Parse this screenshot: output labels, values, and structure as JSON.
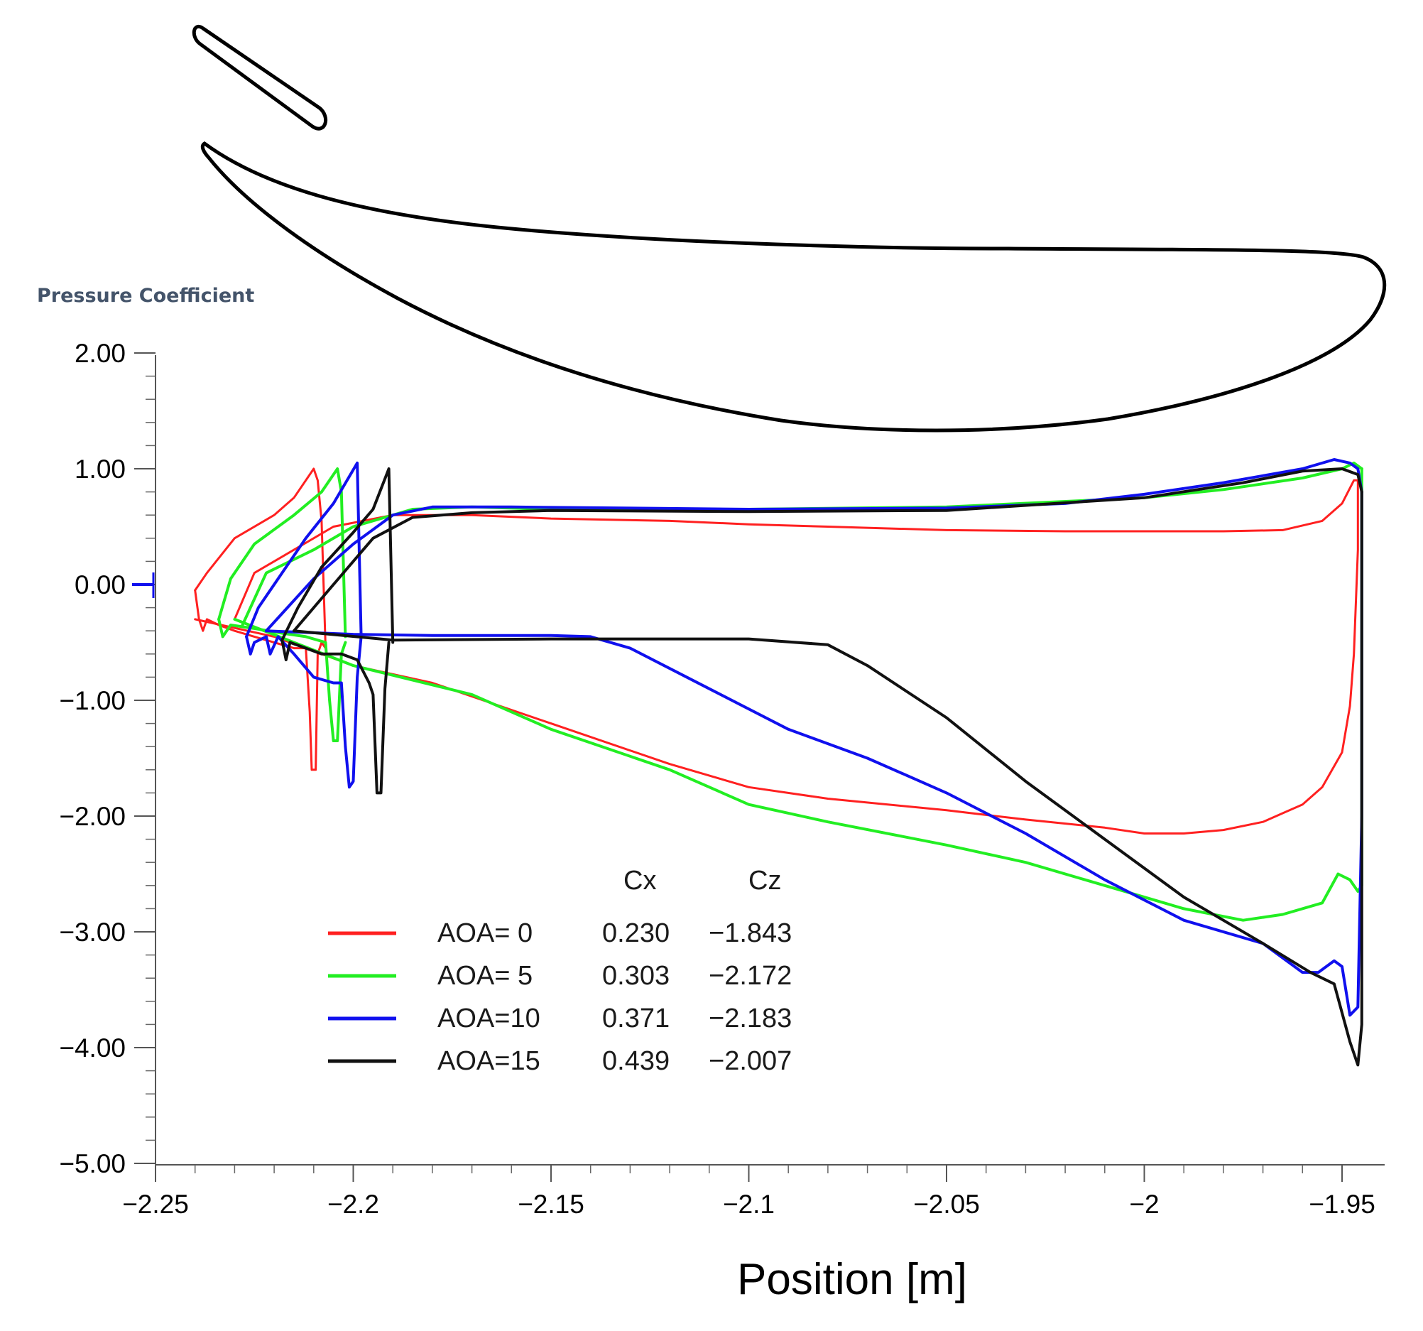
{
  "chart_data": {
    "type": "line",
    "title": "",
    "ylabel": "Pressure Coefficient",
    "xlabel": "Position [m]",
    "xlim": [
      -2.25,
      -1.945
    ],
    "ylim": [
      -5.0,
      2.0
    ],
    "x_ticks": [
      -2.25,
      -2.2,
      -2.15,
      -2.1,
      -2.05,
      -2.0,
      -1.95
    ],
    "x_tick_labels": [
      "−2.25",
      "−2.2",
      "−2.15",
      "−2.1",
      "−2.05",
      "−2",
      "−1.95"
    ],
    "y_ticks": [
      2.0,
      1.0,
      0.0,
      -1.0,
      -2.0,
      -3.0,
      -4.0,
      -5.0
    ],
    "y_tick_labels": [
      "2.00",
      "1.00",
      "0.00",
      "−1.00",
      "−2.00",
      "−3.00",
      "−4.00",
      "−5.00"
    ],
    "legend": {
      "placement": "lower-left",
      "header": {
        "cx": "Cx",
        "cz": "Cz"
      },
      "entries": [
        {
          "label": "AOA= 0",
          "cx": "0.230",
          "cz": "−1.843",
          "color": "#ff2020"
        },
        {
          "label": "AOA= 5",
          "cx": "0.303",
          "cz": "−2.172",
          "color": "#22ee22"
        },
        {
          "label": "AOA=10",
          "cx": "0.371",
          "cz": "−2.183",
          "color": "#1010ee"
        },
        {
          "label": "AOA=15",
          "cx": "0.439",
          "cz": "−2.007",
          "color": "#111111"
        }
      ]
    },
    "series": [
      {
        "name": "AOA= 0",
        "color": "#ff2020",
        "slat_upper": [
          [
            -2.24,
            -0.05
          ],
          [
            -2.239,
            -0.3
          ],
          [
            -2.238,
            -0.4
          ],
          [
            -2.237,
            -0.3
          ],
          [
            -2.234,
            -0.35
          ],
          [
            -2.23,
            -0.4
          ],
          [
            -2.225,
            -0.45
          ],
          [
            -2.22,
            -0.5
          ],
          [
            -2.215,
            -0.55
          ],
          [
            -2.212,
            -0.55
          ],
          [
            -2.211,
            -1.1
          ],
          [
            -2.2105,
            -1.6
          ],
          [
            -2.2095,
            -1.6
          ],
          [
            -2.209,
            -0.6
          ],
          [
            -2.208,
            -0.5
          ],
          [
            -2.207,
            -0.55
          ]
        ],
        "slat_lower": [
          [
            -2.24,
            -0.05
          ],
          [
            -2.237,
            0.1
          ],
          [
            -2.23,
            0.4
          ],
          [
            -2.22,
            0.6
          ],
          [
            -2.215,
            0.75
          ],
          [
            -2.21,
            1.0
          ],
          [
            -2.209,
            0.9
          ],
          [
            -2.208,
            0.55
          ],
          [
            -2.207,
            -0.55
          ]
        ],
        "main_upper": [
          [
            -2.24,
            -0.3
          ],
          [
            -2.22,
            -0.45
          ],
          [
            -2.2,
            -0.7
          ],
          [
            -2.18,
            -0.85
          ],
          [
            -2.15,
            -1.2
          ],
          [
            -2.12,
            -1.55
          ],
          [
            -2.1,
            -1.75
          ],
          [
            -2.08,
            -1.85
          ],
          [
            -2.05,
            -1.95
          ],
          [
            -2.03,
            -2.03
          ],
          [
            -2.01,
            -2.1
          ],
          [
            -2.0,
            -2.15
          ],
          [
            -1.99,
            -2.15
          ],
          [
            -1.98,
            -2.12
          ],
          [
            -1.97,
            -2.05
          ],
          [
            -1.96,
            -1.9
          ],
          [
            -1.955,
            -1.75
          ],
          [
            -1.95,
            -1.45
          ],
          [
            -1.948,
            -1.05
          ],
          [
            -1.947,
            -0.6
          ],
          [
            -1.946,
            0.3
          ],
          [
            -1.946,
            0.9
          ]
        ],
        "main_lower": [
          [
            -2.23,
            -0.3
          ],
          [
            -2.225,
            0.1
          ],
          [
            -2.215,
            0.3
          ],
          [
            -2.205,
            0.5
          ],
          [
            -2.19,
            0.6
          ],
          [
            -2.17,
            0.6
          ],
          [
            -2.15,
            0.57
          ],
          [
            -2.12,
            0.55
          ],
          [
            -2.1,
            0.52
          ],
          [
            -2.08,
            0.5
          ],
          [
            -2.05,
            0.47
          ],
          [
            -2.02,
            0.46
          ],
          [
            -2.0,
            0.46
          ],
          [
            -1.98,
            0.46
          ],
          [
            -1.965,
            0.47
          ],
          [
            -1.955,
            0.55
          ],
          [
            -1.95,
            0.7
          ],
          [
            -1.947,
            0.9
          ],
          [
            -1.946,
            0.9
          ]
        ]
      },
      {
        "name": "AOA= 5",
        "color": "#22ee22",
        "slat_upper": [
          [
            -2.234,
            -0.3
          ],
          [
            -2.233,
            -0.45
          ],
          [
            -2.231,
            -0.35
          ],
          [
            -2.225,
            -0.38
          ],
          [
            -2.218,
            -0.42
          ],
          [
            -2.212,
            -0.45
          ],
          [
            -2.207,
            -0.5
          ],
          [
            -2.206,
            -1.0
          ],
          [
            -2.205,
            -1.35
          ],
          [
            -2.204,
            -1.35
          ],
          [
            -2.203,
            -0.6
          ],
          [
            -2.202,
            -0.5
          ]
        ],
        "slat_lower": [
          [
            -2.234,
            -0.3
          ],
          [
            -2.231,
            0.05
          ],
          [
            -2.225,
            0.35
          ],
          [
            -2.215,
            0.6
          ],
          [
            -2.208,
            0.8
          ],
          [
            -2.204,
            1.0
          ],
          [
            -2.203,
            0.8
          ],
          [
            -2.202,
            -0.45
          ]
        ],
        "main_upper": [
          [
            -2.23,
            -0.3
          ],
          [
            -2.2,
            -0.7
          ],
          [
            -2.17,
            -0.95
          ],
          [
            -2.15,
            -1.25
          ],
          [
            -2.12,
            -1.6
          ],
          [
            -2.1,
            -1.9
          ],
          [
            -2.08,
            -2.05
          ],
          [
            -2.05,
            -2.25
          ],
          [
            -2.03,
            -2.4
          ],
          [
            -2.01,
            -2.6
          ],
          [
            -2.0,
            -2.7
          ],
          [
            -1.99,
            -2.8
          ],
          [
            -1.975,
            -2.9
          ],
          [
            -1.965,
            -2.85
          ],
          [
            -1.955,
            -2.75
          ],
          [
            -1.951,
            -2.5
          ],
          [
            -1.948,
            -2.55
          ],
          [
            -1.946,
            -2.65
          ],
          [
            -1.945,
            -2.6
          ],
          [
            -1.945,
            -1.0
          ],
          [
            -1.945,
            1.0
          ]
        ],
        "main_lower": [
          [
            -2.228,
            -0.35
          ],
          [
            -2.222,
            0.1
          ],
          [
            -2.21,
            0.3
          ],
          [
            -2.2,
            0.5
          ],
          [
            -2.185,
            0.65
          ],
          [
            -2.17,
            0.67
          ],
          [
            -2.15,
            0.65
          ],
          [
            -2.1,
            0.65
          ],
          [
            -2.05,
            0.67
          ],
          [
            -2.0,
            0.75
          ],
          [
            -1.98,
            0.82
          ],
          [
            -1.96,
            0.92
          ],
          [
            -1.95,
            1.0
          ],
          [
            -1.947,
            1.05
          ],
          [
            -1.945,
            1.0
          ]
        ]
      },
      {
        "name": "AOA=10",
        "color": "#1010ee",
        "slat_upper": [
          [
            -2.227,
            -0.45
          ],
          [
            -2.226,
            -0.6
          ],
          [
            -2.225,
            -0.5
          ],
          [
            -2.222,
            -0.45
          ],
          [
            -2.221,
            -0.6
          ],
          [
            -2.219,
            -0.45
          ],
          [
            -2.215,
            -0.6
          ],
          [
            -2.21,
            -0.8
          ],
          [
            -2.205,
            -0.85
          ],
          [
            -2.203,
            -0.85
          ],
          [
            -2.202,
            -1.4
          ],
          [
            -2.201,
            -1.75
          ],
          [
            -2.2,
            -1.7
          ],
          [
            -2.199,
            -0.8
          ],
          [
            -2.198,
            -0.45
          ]
        ],
        "slat_lower": [
          [
            -2.227,
            -0.45
          ],
          [
            -2.224,
            -0.2
          ],
          [
            -2.218,
            0.1
          ],
          [
            -2.212,
            0.4
          ],
          [
            -2.205,
            0.7
          ],
          [
            -2.199,
            1.05
          ],
          [
            -2.198,
            -0.45
          ]
        ],
        "main_upper": [
          [
            -2.222,
            -0.4
          ],
          [
            -2.2,
            -0.43
          ],
          [
            -2.18,
            -0.44
          ],
          [
            -2.15,
            -0.44
          ],
          [
            -2.14,
            -0.45
          ],
          [
            -2.13,
            -0.55
          ],
          [
            -2.11,
            -0.9
          ],
          [
            -2.09,
            -1.25
          ],
          [
            -2.07,
            -1.5
          ],
          [
            -2.05,
            -1.8
          ],
          [
            -2.03,
            -2.15
          ],
          [
            -2.01,
            -2.55
          ],
          [
            -1.99,
            -2.9
          ],
          [
            -1.97,
            -3.1
          ],
          [
            -1.96,
            -3.35
          ],
          [
            -1.956,
            -3.35
          ],
          [
            -1.952,
            -3.25
          ],
          [
            -1.95,
            -3.3
          ],
          [
            -1.948,
            -3.72
          ],
          [
            -1.946,
            -3.65
          ],
          [
            -1.945,
            -2.0
          ],
          [
            -1.945,
            0.8
          ]
        ],
        "main_lower": [
          [
            -2.222,
            -0.4
          ],
          [
            -2.21,
            0.05
          ],
          [
            -2.2,
            0.35
          ],
          [
            -2.19,
            0.6
          ],
          [
            -2.18,
            0.67
          ],
          [
            -2.16,
            0.67
          ],
          [
            -2.1,
            0.65
          ],
          [
            -2.05,
            0.66
          ],
          [
            -2.02,
            0.7
          ],
          [
            -2.0,
            0.78
          ],
          [
            -1.98,
            0.88
          ],
          [
            -1.96,
            1.0
          ],
          [
            -1.952,
            1.08
          ],
          [
            -1.948,
            1.05
          ],
          [
            -1.946,
            1.0
          ],
          [
            -1.945,
            0.8
          ]
        ]
      },
      {
        "name": "AOA=15",
        "color": "#111111",
        "slat_upper": [
          [
            -2.218,
            -0.48
          ],
          [
            -2.217,
            -0.65
          ],
          [
            -2.216,
            -0.5
          ],
          [
            -2.212,
            -0.55
          ],
          [
            -2.208,
            -0.6
          ],
          [
            -2.203,
            -0.6
          ],
          [
            -2.199,
            -0.65
          ],
          [
            -2.196,
            -0.85
          ],
          [
            -2.195,
            -0.95
          ],
          [
            -2.194,
            -1.8
          ],
          [
            -2.193,
            -1.8
          ],
          [
            -2.192,
            -0.9
          ],
          [
            -2.191,
            -0.5
          ]
        ],
        "slat_lower": [
          [
            -2.218,
            -0.48
          ],
          [
            -2.214,
            -0.2
          ],
          [
            -2.208,
            0.15
          ],
          [
            -2.2,
            0.45
          ],
          [
            -2.195,
            0.65
          ],
          [
            -2.191,
            1.0
          ],
          [
            -2.19,
            -0.5
          ]
        ],
        "main_upper": [
          [
            -2.215,
            -0.4
          ],
          [
            -2.19,
            -0.48
          ],
          [
            -2.15,
            -0.47
          ],
          [
            -2.1,
            -0.47
          ],
          [
            -2.08,
            -0.52
          ],
          [
            -2.07,
            -0.7
          ],
          [
            -2.05,
            -1.15
          ],
          [
            -2.03,
            -1.7
          ],
          [
            -2.01,
            -2.2
          ],
          [
            -1.99,
            -2.7
          ],
          [
            -1.97,
            -3.1
          ],
          [
            -1.958,
            -3.35
          ],
          [
            -1.952,
            -3.45
          ],
          [
            -1.948,
            -3.95
          ],
          [
            -1.946,
            -4.15
          ],
          [
            -1.945,
            -3.8
          ],
          [
            -1.945,
            -2.0
          ],
          [
            -1.945,
            0.8
          ]
        ],
        "main_lower": [
          [
            -2.215,
            -0.4
          ],
          [
            -2.205,
            0.0
          ],
          [
            -2.195,
            0.4
          ],
          [
            -2.185,
            0.58
          ],
          [
            -2.17,
            0.62
          ],
          [
            -2.15,
            0.64
          ],
          [
            -2.1,
            0.63
          ],
          [
            -2.05,
            0.64
          ],
          [
            -2.0,
            0.75
          ],
          [
            -1.975,
            0.88
          ],
          [
            -1.96,
            0.98
          ],
          [
            -1.95,
            1.0
          ],
          [
            -1.946,
            0.95
          ],
          [
            -1.945,
            0.8
          ]
        ]
      }
    ]
  }
}
